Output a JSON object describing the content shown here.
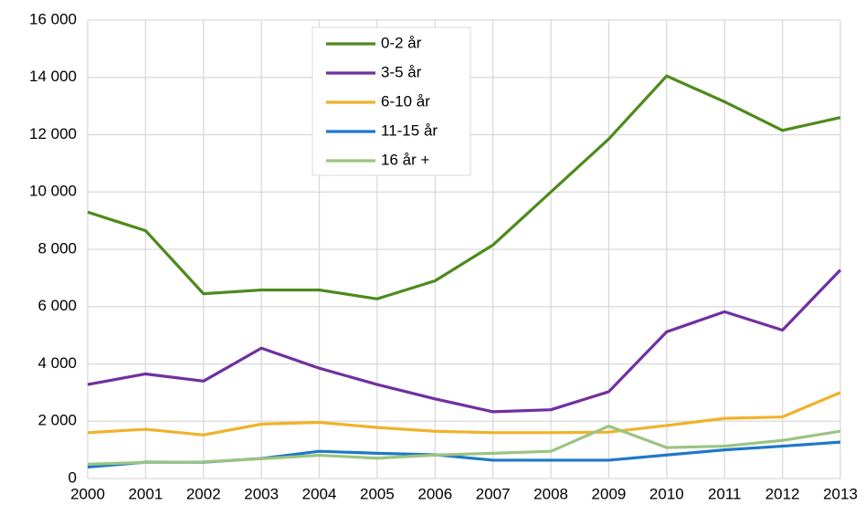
{
  "chart_data": {
    "type": "line",
    "x": [
      2000,
      2001,
      2002,
      2003,
      2004,
      2005,
      2006,
      2007,
      2008,
      2009,
      2010,
      2011,
      2012,
      2013
    ],
    "series": [
      {
        "name": "0-2 år",
        "color": "#4d8a1c",
        "values": [
          9300,
          8650,
          6450,
          6580,
          6580,
          6270,
          6900,
          8150,
          10000,
          11850,
          14050,
          13150,
          12150,
          12600
        ]
      },
      {
        "name": "3-5 år",
        "color": "#7030a0",
        "values": [
          3280,
          3650,
          3400,
          4550,
          3850,
          3280,
          2780,
          2330,
          2400,
          3030,
          5120,
          5820,
          5180,
          7280
        ]
      },
      {
        "name": "6-10 år",
        "color": "#f0b22a",
        "values": [
          1600,
          1720,
          1520,
          1900,
          1960,
          1780,
          1650,
          1600,
          1600,
          1620,
          1850,
          2100,
          2150,
          3000
        ]
      },
      {
        "name": "11-15 år",
        "color": "#1f78c8",
        "values": [
          400,
          570,
          570,
          700,
          950,
          880,
          830,
          640,
          640,
          640,
          820,
          1000,
          1130,
          1270
        ]
      },
      {
        "name": "16 år +",
        "color": "#9bc481",
        "values": [
          500,
          560,
          580,
          690,
          810,
          710,
          820,
          880,
          950,
          1830,
          1080,
          1130,
          1330,
          1650
        ]
      }
    ],
    "xlim": [
      2000,
      2013
    ],
    "xticks": [
      2000,
      2001,
      2002,
      2003,
      2004,
      2005,
      2006,
      2007,
      2008,
      2009,
      2010,
      2011,
      2012,
      2013
    ],
    "ylim": [
      0,
      16000
    ],
    "yticks": [
      0,
      {
        "value": 2000,
        "label": "2 000"
      },
      {
        "value": 4000,
        "label": "4 000"
      },
      {
        "value": 6000,
        "label": "6 000"
      },
      {
        "value": 8000,
        "label": "8 000"
      },
      {
        "value": 10000,
        "label": "10 000"
      },
      {
        "value": 12000,
        "label": "12 000"
      },
      {
        "value": 14000,
        "label": "14 000"
      },
      {
        "value": 16000,
        "label": "16 000"
      }
    ],
    "grid": true
  }
}
